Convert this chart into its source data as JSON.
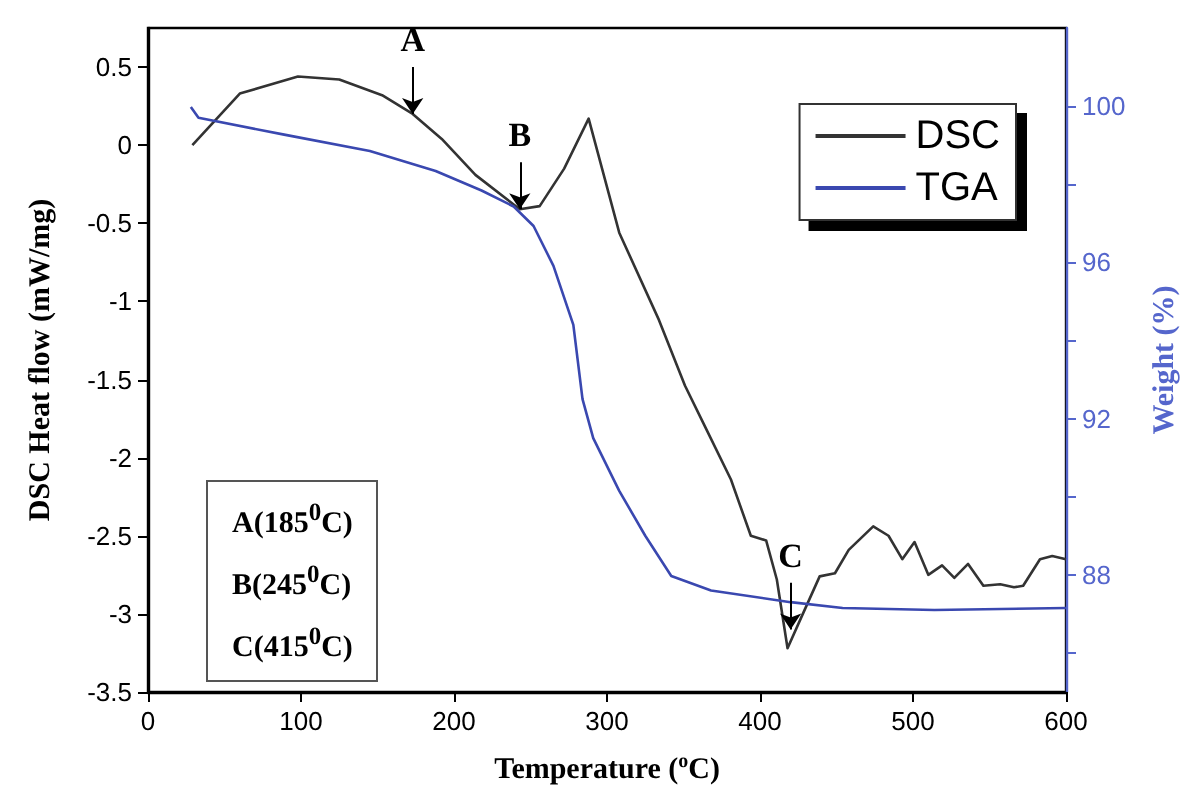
{
  "chart_data": {
    "type": "line",
    "xlabel": "Temperature ($^{o}$C)",
    "ylabel": "DSC Heat flow (mW/mg)",
    "y2label": "Weight (%)",
    "xlim": [
      0,
      600
    ],
    "xticks": [
      0,
      100,
      200,
      300,
      400,
      500,
      600
    ],
    "ylim": [
      -3.5,
      0.75
    ],
    "yticks": [
      -3.5,
      -3.0,
      -2.5,
      -2.0,
      -1.5,
      -1.0,
      -0.5,
      0.0,
      0.5
    ],
    "y2lim": [
      85,
      102
    ],
    "y2ticks": [
      {
        "value": 86,
        "label": null
      },
      88,
      {
        "value": 90,
        "label": null
      },
      92,
      {
        "value": 94,
        "label": null
      },
      96,
      {
        "value": 98,
        "label": null
      },
      100
    ],
    "legend": "top right",
    "grid": false,
    "series": [
      {
        "name": "DSC",
        "color": "#333333",
        "x": [
          29,
          60,
          98,
          125,
          153,
          173,
          192,
          214,
          243,
          256,
          272,
          288,
          308,
          334,
          351,
          364,
          381,
          394,
          404,
          411,
          418,
          428,
          439,
          449,
          458,
          474,
          484,
          493,
          501,
          510,
          519,
          527,
          536,
          546,
          557,
          566,
          572,
          583,
          591,
          600
        ],
        "values": [
          0,
          0.33,
          0.44,
          0.42,
          0.32,
          0.2,
          0.04,
          -0.19,
          -0.41,
          -0.39,
          -0.15,
          0.17,
          -0.56,
          -1.12,
          -1.54,
          -1.8,
          -2.14,
          -2.5,
          -2.53,
          -2.78,
          -3.22,
          -3.0,
          -2.76,
          -2.74,
          -2.59,
          -2.44,
          -2.5,
          -2.65,
          -2.54,
          -2.75,
          -2.69,
          -2.77,
          -2.68,
          -2.82,
          -2.81,
          -2.83,
          -2.82,
          -2.65,
          -2.63,
          -2.65
        ]
      },
      {
        "name": "TGA",
        "color": "#3a48b0",
        "axis": "y2",
        "x": [
          28,
          33,
          89,
          145,
          188,
          218,
          239,
          252,
          265,
          278,
          284,
          291,
          308,
          325,
          342,
          368,
          420,
          454,
          514,
          600
        ],
        "values": [
          99.98,
          99.7,
          99.27,
          98.85,
          98.34,
          97.84,
          97.43,
          96.93,
          95.91,
          94.4,
          92.5,
          91.5,
          90.15,
          89.0,
          87.97,
          87.6,
          87.3,
          87.15,
          87.1,
          87.15
        ]
      }
    ],
    "annotations": [
      {
        "text": "A",
        "x": 173,
        "y": 0.2
      },
      {
        "text": "B",
        "x": 243,
        "y": -0.41
      },
      {
        "text": "C",
        "x": 420,
        "y": -3.1
      },
      "A(185$^{0}$C)",
      "B(245$^{0}$C)",
      "C(415$^{0}$C)"
    ]
  }
}
